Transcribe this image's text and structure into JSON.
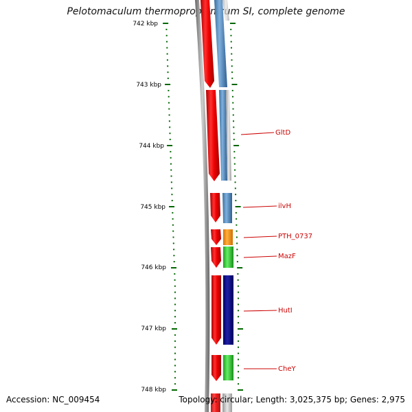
{
  "title": "Pelotomaculum thermopropionicum SI, complete genome",
  "axis": {
    "unit": "kbp",
    "labels": [
      "742 kbp",
      "743 kbp",
      "744 kbp",
      "745 kbp",
      "746 kbp",
      "747 kbp",
      "748 kbp"
    ]
  },
  "genes": [
    {
      "name": "GltD",
      "color": "#cc0000"
    },
    {
      "name": "ilvH",
      "color": "#cc0000"
    },
    {
      "name": "PTH_0737",
      "color": "#cc0000"
    },
    {
      "name": "MazF",
      "color": "#cc0000"
    },
    {
      "name": "HutI",
      "color": "#cc0000"
    },
    {
      "name": "CheY",
      "color": "#cc0000"
    }
  ],
  "colors": {
    "forward_strand": "#ee1111",
    "steelblue": "#4a7fb0",
    "orange": "#f28a10",
    "green": "#33c033",
    "navy": "#0a0a80",
    "backbone": "#888888",
    "ticks": "#006600"
  },
  "footer": {
    "accession": "Accession: NC_009454",
    "stats": "Topology: circular; Length: 3,025,375 bp; Genes: 2,975"
  }
}
